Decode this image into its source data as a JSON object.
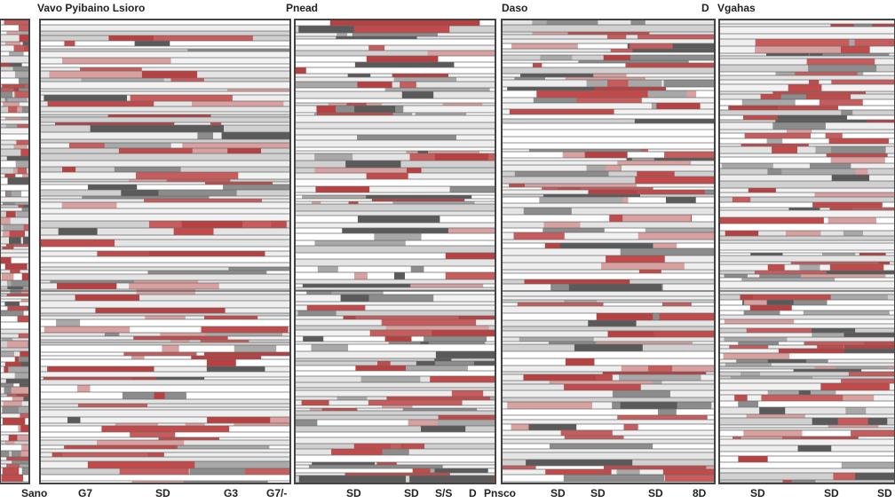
{
  "header": {
    "labels": [
      "Vavo Pyibaino Lsioro",
      "Pnead",
      "Daso",
      "D",
      "Vgahas"
    ]
  },
  "footer": {
    "labels": [
      "Sano",
      "G7",
      "SD",
      "G3",
      "G7/-",
      "SD",
      "SD",
      "S/S",
      "D",
      "Pnsco",
      "SD",
      "SD",
      "SD",
      "8D",
      "SD",
      "SD",
      "SD"
    ]
  }
}
